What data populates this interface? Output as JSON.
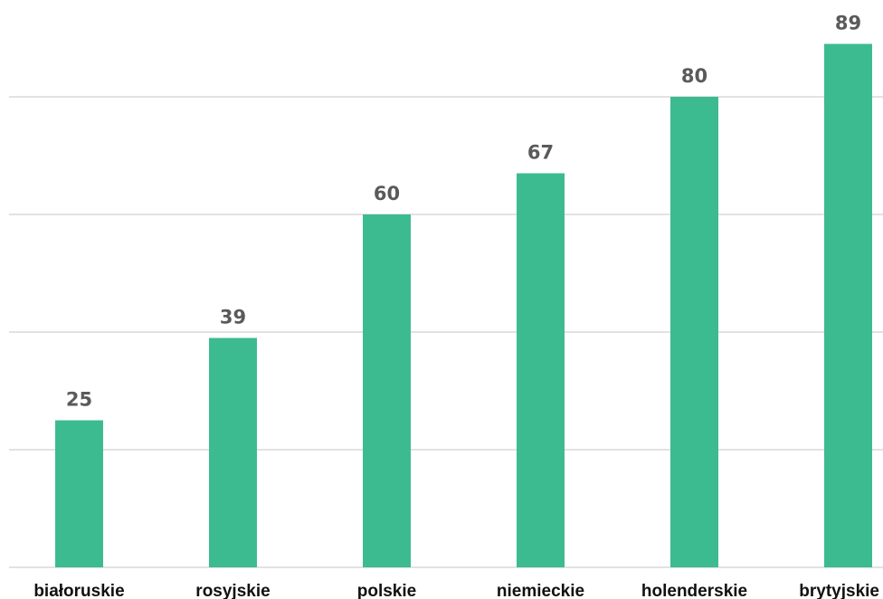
{
  "chart_data": {
    "type": "bar",
    "categories": [
      "białoruskie",
      "rosyjskie",
      "polskie",
      "niemieckie",
      "holenderskie",
      "brytyjskie"
    ],
    "values": [
      25,
      39,
      60,
      67,
      80,
      89
    ],
    "title": "",
    "xlabel": "",
    "ylabel": "",
    "ylim": [
      0,
      100
    ],
    "gridlines": [
      20,
      40,
      60,
      80
    ],
    "grid": true,
    "legend": "none",
    "bar_color": "#3cbb91",
    "gridline_color": "#d9d9d9",
    "value_label_color": "#5a5a5a",
    "category_label_color": "#111111"
  }
}
